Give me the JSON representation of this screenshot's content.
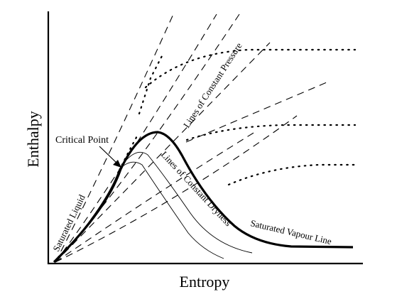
{
  "diagram": {
    "y_axis_label": "Enthalpy",
    "x_axis_label": "Entropy",
    "labels": {
      "critical_point": "Critical Point",
      "constant_pressure": "Lines of Constant Pressure",
      "constant_dryness": "Lines of Constant Dryness",
      "saturated_liquid": "Saturated Liquid",
      "saturated_vapour": "Saturated Vapour Line"
    },
    "line_color": "#000000",
    "background": "#ffffff"
  }
}
